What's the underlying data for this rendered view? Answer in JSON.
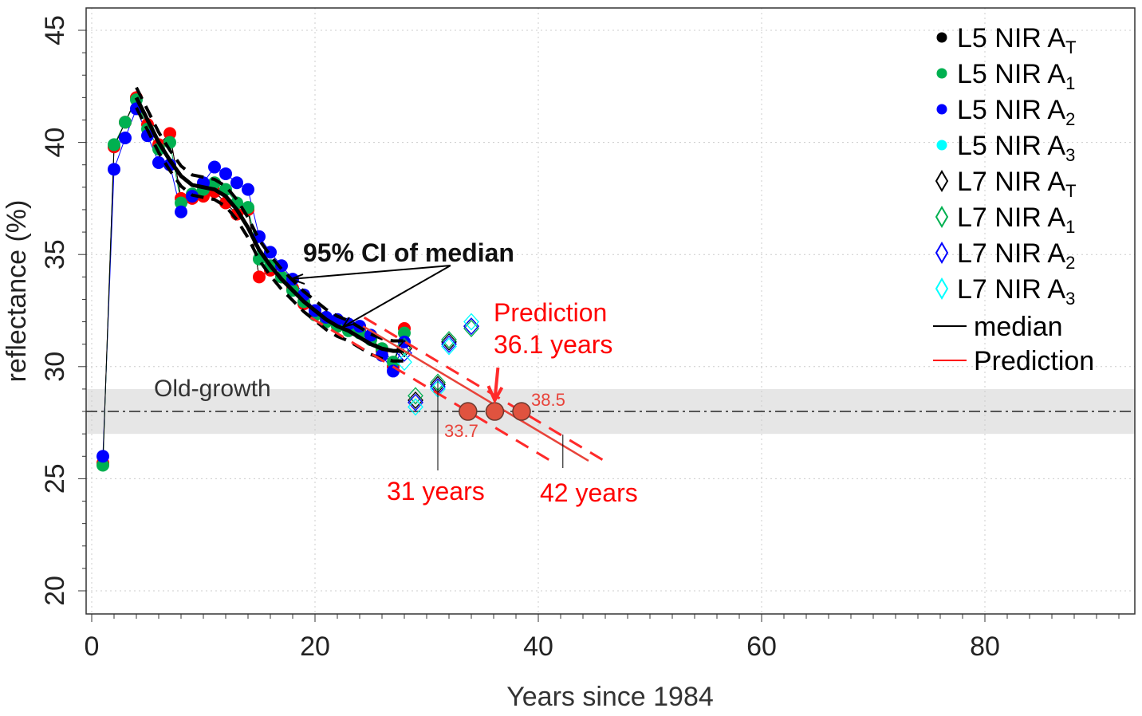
{
  "chart_data": {
    "type": "scatter",
    "xlabel": "Years since 1984",
    "ylabel": "reflectance (%)",
    "xlim": [
      -0.5,
      93.5
    ],
    "ylim": [
      19.0,
      46.0
    ],
    "x_ticks": [
      0,
      20,
      40,
      60,
      80
    ],
    "y_ticks": [
      20,
      25,
      30,
      35,
      40,
      45
    ],
    "grid": true,
    "legend_position": "top-right",
    "colors": {
      "black": "#000000",
      "green": "#00b050",
      "blue": "#0000ff",
      "cyan": "#00ffff",
      "red": "#ff0000",
      "prediction_point": "#e0533f"
    },
    "series_l5": [
      {
        "name": "L5 NIR A",
        "sub": "T",
        "color": "#000000",
        "x": [
          1,
          2,
          3,
          4,
          5,
          6,
          7,
          8,
          9,
          10,
          11,
          12,
          13,
          14,
          15,
          16,
          17,
          18,
          19,
          20,
          21,
          22,
          23,
          24,
          25,
          26,
          27,
          28
        ],
        "y": [
          25.7,
          39.8,
          40.9,
          42.0,
          40.8,
          39.9,
          40.4,
          37.5,
          37.5,
          37.6,
          37.8,
          37.3,
          36.8,
          37.0,
          34.0,
          34.3,
          34.0,
          33.5,
          32.8,
          32.4,
          32.1,
          31.8,
          31.7,
          31.6,
          31.3,
          30.7,
          30.0,
          31.7
        ]
      },
      {
        "name": "L5 NIR A",
        "sub": "1",
        "color": "#00b050",
        "x": [
          1,
          2,
          3,
          4,
          5,
          6,
          7,
          8,
          9,
          10,
          11,
          12,
          13,
          14,
          15,
          16,
          17,
          18,
          19,
          20,
          21,
          22,
          23,
          24,
          25,
          26,
          27,
          28
        ],
        "y": [
          25.6,
          39.9,
          40.9,
          41.9,
          40.6,
          39.7,
          40.0,
          37.3,
          37.7,
          37.9,
          38.2,
          37.9,
          37.3,
          37.1,
          34.8,
          34.5,
          34.0,
          33.4,
          32.9,
          32.3,
          32.0,
          31.8,
          31.6,
          31.5,
          31.2,
          30.8,
          30.2,
          31.5
        ]
      },
      {
        "name": "L5 NIR A",
        "sub": "2",
        "color": "#0000ff",
        "x": [
          1,
          2,
          3,
          4,
          5,
          6,
          7,
          8,
          9,
          10,
          11,
          12,
          13,
          14,
          15,
          16,
          17,
          18,
          19,
          20,
          21,
          22,
          23,
          24,
          25,
          26,
          27,
          28
        ],
        "y": [
          26.0,
          38.8,
          40.2,
          41.5,
          40.3,
          39.1,
          39.0,
          36.9,
          37.6,
          38.2,
          38.9,
          38.6,
          38.2,
          37.9,
          35.8,
          35.1,
          34.5,
          33.9,
          33.2,
          32.5,
          32.2,
          32.1,
          31.9,
          31.8,
          31.4,
          30.5,
          29.8,
          31.1
        ]
      },
      {
        "name": "L5 NIR A",
        "sub": "3",
        "color": "#00ffff",
        "x": [],
        "y": []
      }
    ],
    "extra_red_points": {
      "x": [
        1,
        2,
        3,
        4,
        5,
        6,
        7,
        8,
        9,
        10,
        11,
        12,
        13,
        14,
        15,
        16,
        17,
        18,
        19,
        20,
        21,
        22,
        23,
        24,
        25,
        26,
        27,
        28
      ],
      "y": [
        25.7,
        39.8,
        40.9,
        42.0,
        40.8,
        39.9,
        40.4,
        37.5,
        37.5,
        37.6,
        37.8,
        37.3,
        36.8,
        37.0,
        34.0,
        34.3,
        34.0,
        33.5,
        32.8,
        32.4,
        32.1,
        31.8,
        31.7,
        31.6,
        31.3,
        30.7,
        30.0,
        31.7
      ]
    },
    "series_l7": [
      {
        "name": "L7 NIR A",
        "sub": "T",
        "color": "#000000",
        "x": [
          28,
          29,
          31,
          32,
          34
        ],
        "y": [
          30.8,
          28.5,
          29.2,
          31.1,
          31.8
        ]
      },
      {
        "name": "L7 NIR A",
        "sub": "1",
        "color": "#00b050",
        "x": [
          28,
          29,
          31,
          32,
          34
        ],
        "y": [
          30.9,
          28.7,
          29.3,
          31.2,
          31.7
        ]
      },
      {
        "name": "L7 NIR A",
        "sub": "2",
        "color": "#0000ff",
        "x": [
          28,
          29,
          31,
          32,
          34
        ],
        "y": [
          30.6,
          28.4,
          29.1,
          31.0,
          31.8
        ]
      },
      {
        "name": "L7 NIR A",
        "sub": "3",
        "color": "#00ffff",
        "x": [
          28,
          29,
          31,
          32,
          34
        ],
        "y": [
          30.2,
          28.2,
          29.0,
          30.9,
          32.0
        ]
      }
    ],
    "median": {
      "name": "median",
      "x": [
        4,
        5,
        6,
        7,
        8,
        9,
        10,
        11,
        12,
        13,
        14,
        15,
        16,
        17,
        18,
        19,
        20,
        21,
        22,
        23,
        24,
        25,
        26,
        27,
        28
      ],
      "y": [
        42.0,
        41.0,
        40.0,
        39.2,
        38.5,
        38.1,
        38.0,
        37.9,
        37.6,
        37.0,
        36.2,
        35.2,
        34.5,
        33.9,
        33.4,
        32.9,
        32.5,
        32.1,
        31.8,
        31.6,
        31.3,
        31.0,
        30.8,
        30.7,
        30.7
      ],
      "ci_halfwidth": 0.45
    },
    "prediction": {
      "name": "Prediction",
      "x": [
        24.3,
        41.8
      ],
      "y": [
        31.8,
        26.6
      ],
      "lower_cross": 33.7,
      "center_cross": 36.1,
      "upper_cross": 38.5
    },
    "old_growth": {
      "label": "Old-growth",
      "level": 28,
      "band": [
        27,
        29
      ]
    },
    "annotations": {
      "ci_label": "95% CI of median",
      "prediction_line1": "Prediction",
      "prediction_line2": "36.1 years",
      "lower_value": "33.7",
      "upper_value": "38.5",
      "years_31": "31 years",
      "years_42": "42 years",
      "years_31_x": 31,
      "years_42_x": 42.2
    }
  }
}
